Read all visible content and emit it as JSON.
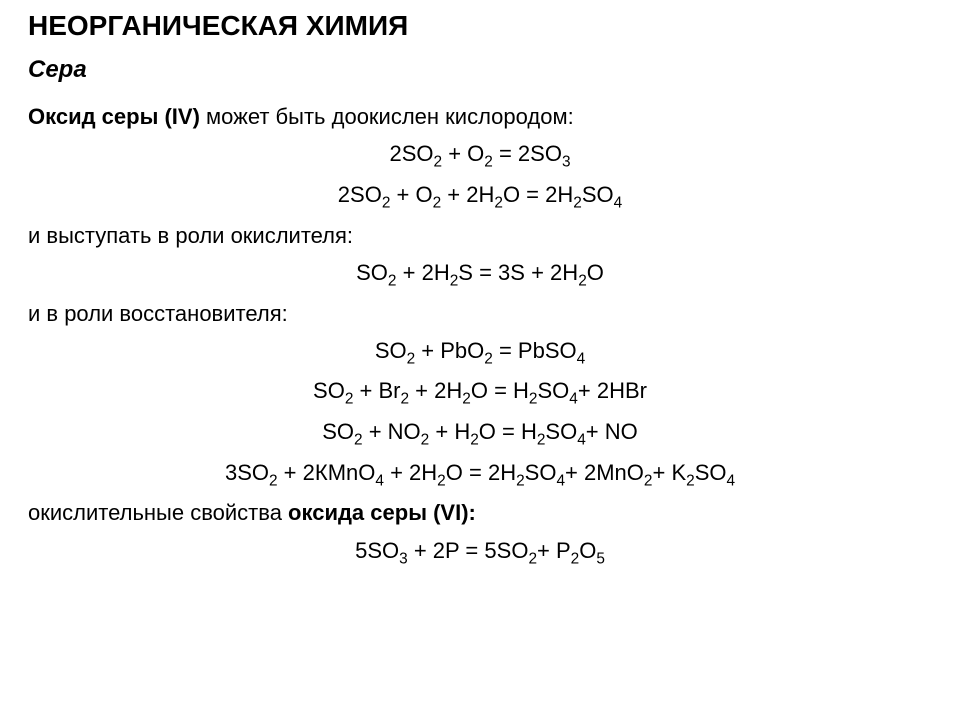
{
  "title": "НЕОРГАНИЧЕСКАЯ ХИМИЯ",
  "subtitle": "Сера",
  "intro_prefix_bold": "Оксид серы (IV) ",
  "intro_suffix": "может быть доокислен кислородом:",
  "eq1": {
    "c1": "2",
    "s1": "SO",
    "sub1": "2",
    "op1": " + ",
    "s2": "O",
    "sub2": "2",
    "op2": " = ",
    "c3": "2",
    "s3": "SO",
    "sub3": "3"
  },
  "eq2": {
    "c1": "2",
    "s1": "SO",
    "sub1": "2",
    "op1": " + ",
    "s2": "O",
    "sub2": "2",
    "op2": " + ",
    "c3": "2",
    "s3": "H",
    "sub3": "2",
    "s3b": "O",
    "op3": " = ",
    "c4": "2",
    "s4": "H",
    "sub4": "2",
    "s4b": "SO",
    "sub4b": "4"
  },
  "line_ox": "и выступать в роли окислителя:",
  "eq3": {
    "s1": "SO",
    "sub1": "2",
    "op1": " + ",
    "c2": "2",
    "s2": "H",
    "sub2": "2",
    "s2b": "S",
    "op2": " = ",
    "c3": "3",
    "s3": "S",
    "op3": " + ",
    "c4": "2",
    "s4": "H",
    "sub4": "2",
    "s4b": "O"
  },
  "line_red": "и  в роли восстановителя:",
  "eq4": {
    "s1": "SO",
    "sub1": "2",
    "op1": " + ",
    "s2": "PbO",
    "sub2": "2",
    "op2": " = ",
    "s3": "PbSO",
    "sub3": "4"
  },
  "eq5": {
    "s1": "SO",
    "sub1": "2",
    "op1": " + ",
    "s2": "Br",
    "sub2": "2",
    "op2": " + ",
    "c3": "2",
    "s3": "H",
    "sub3": "2",
    "s3b": "O",
    "op3": " = ",
    "s4": "H",
    "sub4": "2",
    "s4b": "SO",
    "sub4b": "4",
    "op4": "+ ",
    "c5": "2",
    "s5": "HBr"
  },
  "eq6": {
    "s1": "SO",
    "sub1": "2",
    "op1": " + ",
    "s2": "NO",
    "sub2": "2",
    "op2": " + ",
    "s3": "H",
    "sub3": "2",
    "s3b": "O",
    "op3": " = ",
    "s4": "H",
    "sub4": "2",
    "s4b": "SO",
    "sub4b": "4",
    "op4": "+ ",
    "s5": "NO"
  },
  "eq7": {
    "c1": "3",
    "s1": "SO",
    "sub1": "2",
    "op1": " + ",
    "c2": "2",
    "s2": "КMnO",
    "sub2": "4",
    "sp": "  ",
    "op2": "+ ",
    "c3": "2",
    "s3": "H",
    "sub3": "2",
    "s3b": "O",
    "op3": " = ",
    "c4": "2",
    "s4": "H",
    "sub4": "2",
    "s4b": "SO",
    "sub4b": "4",
    "op4": "+ ",
    "c5": "2",
    "s5": "MnO",
    "sub5": "2",
    "op5": "+ ",
    "s6": "K",
    "sub6": "2",
    "s6b": "SO",
    "sub6b": "4"
  },
  "line_vi_pre": "окислительные свойства ",
  "line_vi_bold": "оксида серы (VI):",
  "eq8": {
    "c1": "5",
    "s1": "SO",
    "sub1": "3",
    "op1": " + ",
    "c2": "2",
    "s2": "P ",
    "op2": "= ",
    "c3": "5",
    "s3": "SO",
    "sub3": "2",
    "op3": "+ ",
    "s4": "P",
    "sub4": "2",
    "s4b": "O",
    "sub4b": "5"
  },
  "colors": {
    "text": "#000000",
    "bg": "#ffffff"
  },
  "typography": {
    "title_fontsize": 28,
    "subtitle_fontsize": 24,
    "body_fontsize": 22,
    "font_family": "Arial"
  }
}
